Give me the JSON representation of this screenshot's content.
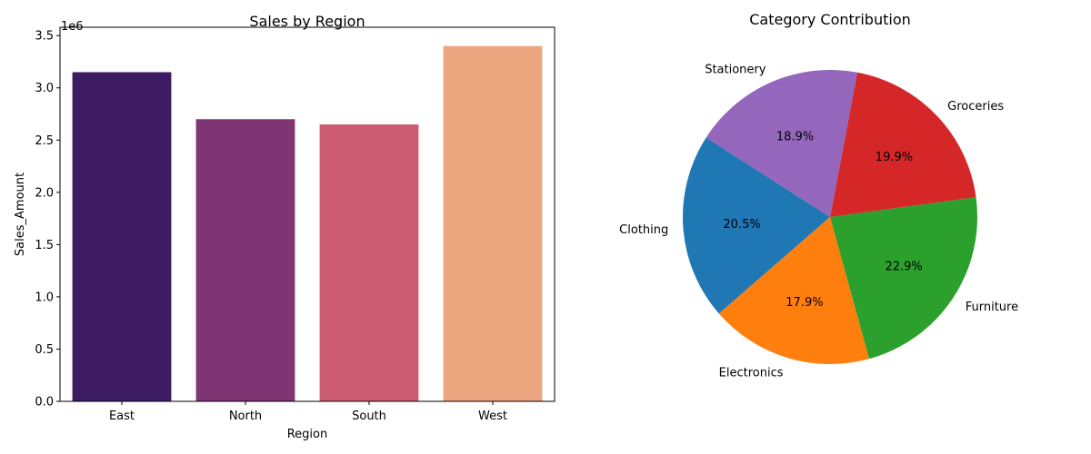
{
  "chart_data": [
    {
      "type": "bar",
      "title": "Sales by Region",
      "xlabel": "Region",
      "ylabel": "Sales_Amount",
      "offset_label": "1e6",
      "categories": [
        "East",
        "North",
        "South",
        "West"
      ],
      "values": [
        3150000,
        2700000,
        2650000,
        3400000
      ],
      "ylim": [
        0,
        3580000
      ],
      "yticks": [
        0,
        500000,
        1000000,
        1500000,
        2000000,
        2500000,
        3000000,
        3500000
      ],
      "ytick_labels": [
        "0.0",
        "0.5",
        "1.0",
        "1.5",
        "2.0",
        "2.5",
        "3.0",
        "3.5"
      ],
      "colors": [
        "#3d1b63",
        "#7f3474",
        "#cc5c71",
        "#eca781"
      ]
    },
    {
      "type": "pie",
      "title": "Category Contribution",
      "slices": [
        {
          "label": "Clothing",
          "value": 20.5,
          "pct_label": "20.5%",
          "color": "#1f77b4"
        },
        {
          "label": "Electronics",
          "value": 17.9,
          "pct_label": "17.9%",
          "color": "#ff7f0e"
        },
        {
          "label": "Furniture",
          "value": 22.9,
          "pct_label": "22.9%",
          "color": "#2ca02c"
        },
        {
          "label": "Groceries",
          "value": 19.9,
          "pct_label": "19.9%",
          "color": "#d62728"
        },
        {
          "label": "Stationery",
          "value": 18.9,
          "pct_label": "18.9%",
          "color": "#9467bd"
        }
      ]
    }
  ]
}
